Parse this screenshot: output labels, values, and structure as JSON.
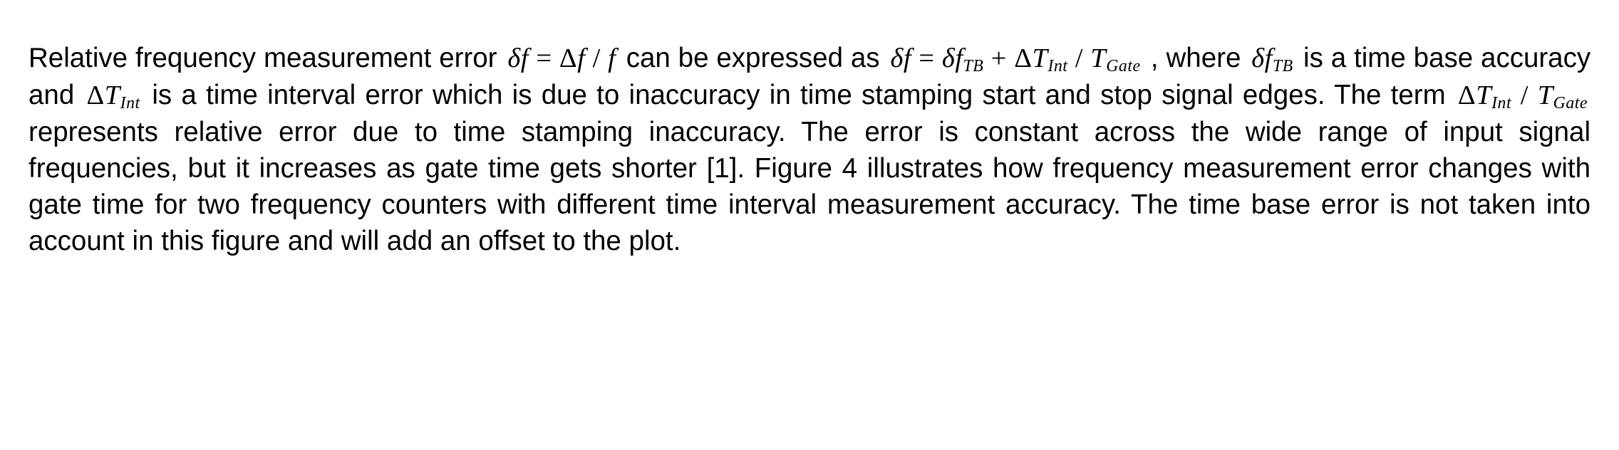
{
  "paragraph": {
    "text_color": "#000000",
    "background_color": "#ffffff",
    "body_font_family": "Arial",
    "body_font_size_pt": 29,
    "math_font_family": "Times New Roman",
    "text_align": "justify",
    "segments": {
      "s1": "Relative frequency measurement error ",
      "s2": " can be expressed as ",
      "s3": ", where ",
      "s4": " is a time base accuracy and ",
      "s5": " is a time interval error which is due to inaccuracy in time stamping start and stop signal edges. The term ",
      "s6": " represents relative error due to time stamping inaccuracy. The error is constant across the wide range of input signal frequencies, but it increases as gate time gets shorter [1]. Figure 4 illustrates how frequency measurement error changes with gate time for two frequency counters with different time interval measurement accuracy. The time base error is not taken into account in this figure and will add an offset to the plot."
    },
    "math": {
      "eq1": {
        "delta_lc": "δ",
        "f": "f",
        "eq": " = ",
        "Delta_uc": "Δ",
        "slash": " / "
      },
      "eq2": {
        "delta_lc": "δ",
        "f": "f",
        "eq": " = ",
        "sub_TB": "TB",
        "plus": " + ",
        "Delta_uc": "Δ",
        "T": "T",
        "sub_Int": "Int",
        "slash": " / ",
        "sub_Gate": "Gate"
      },
      "df_tb": {
        "delta_lc": "δ",
        "f": "f",
        "sub_TB": "TB"
      },
      "dT_int": {
        "Delta_uc": "Δ",
        "T": "T",
        "sub_Int": "Int"
      },
      "ratio": {
        "Delta_uc": "Δ",
        "T": "T",
        "sub_Int": "Int",
        "slash": " / ",
        "sub_Gate": "Gate"
      }
    }
  }
}
